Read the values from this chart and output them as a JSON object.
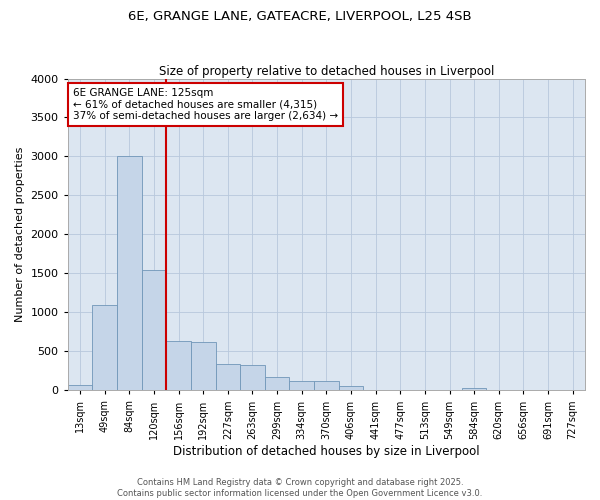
{
  "title_line1": "6E, GRANGE LANE, GATEACRE, LIVERPOOL, L25 4SB",
  "title_line2": "Size of property relative to detached houses in Liverpool",
  "xlabel": "Distribution of detached houses by size in Liverpool",
  "ylabel": "Number of detached properties",
  "categories": [
    "13sqm",
    "49sqm",
    "84sqm",
    "120sqm",
    "156sqm",
    "192sqm",
    "227sqm",
    "263sqm",
    "299sqm",
    "334sqm",
    "370sqm",
    "406sqm",
    "441sqm",
    "477sqm",
    "513sqm",
    "549sqm",
    "584sqm",
    "620sqm",
    "656sqm",
    "691sqm",
    "727sqm"
  ],
  "values": [
    75,
    1100,
    3000,
    1550,
    630,
    620,
    340,
    320,
    175,
    120,
    120,
    60,
    0,
    0,
    0,
    0,
    30,
    0,
    0,
    0,
    0
  ],
  "bar_color": "#c5d5e8",
  "bar_edge_color": "#7096b8",
  "grid_color": "#b8c8dc",
  "background_color": "#dce6f1",
  "vline_color": "#cc0000",
  "vline_x_index": 3.5,
  "annotation_title": "6E GRANGE LANE: 125sqm",
  "annotation_line1": "← 61% of detached houses are smaller (4,315)",
  "annotation_line2": "37% of semi-detached houses are larger (2,634) →",
  "annotation_box_edgecolor": "#cc0000",
  "footer_line1": "Contains HM Land Registry data © Crown copyright and database right 2025.",
  "footer_line2": "Contains public sector information licensed under the Open Government Licence v3.0.",
  "ylim": [
    0,
    4000
  ],
  "yticks": [
    0,
    500,
    1000,
    1500,
    2000,
    2500,
    3000,
    3500,
    4000
  ]
}
